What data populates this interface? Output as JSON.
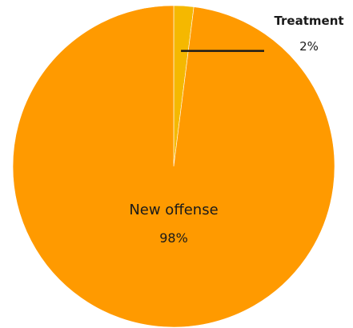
{
  "chart_data": {
    "type": "pie",
    "slices": [
      {
        "label": "Treatment",
        "value": 2,
        "pct_label": "2%",
        "color": "#f5b800"
      },
      {
        "label": "New offense",
        "value": 98,
        "pct_label": "98%",
        "color": "#ff9a00"
      }
    ],
    "start": "12 o'clock",
    "direction": "clockwise",
    "label_placement": {
      "Treatment": "callout-right",
      "New offense": "inside"
    },
    "slice_edge_color": "#ffffff",
    "callout_line_color": "#1a1a1a"
  }
}
